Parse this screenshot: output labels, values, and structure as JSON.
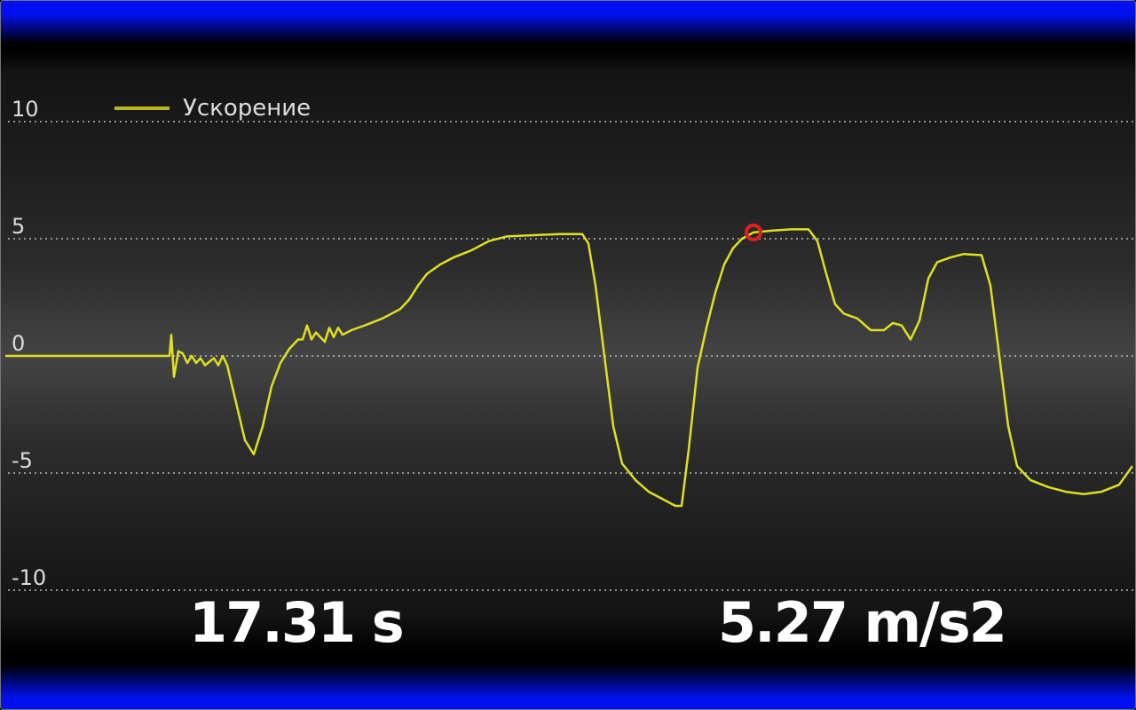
{
  "chart_data": {
    "type": "line",
    "title": "",
    "xlabel": "",
    "ylabel": "",
    "ylim": [
      -10,
      10
    ],
    "yticks": [
      10,
      5,
      0,
      -5,
      -10
    ],
    "grid": "horizontal dotted",
    "legend_position": "top-left",
    "series": [
      {
        "name": "Ускорение",
        "color": "#e0e020",
        "points": [
          [
            0.5,
            0
          ],
          [
            19,
            0
          ],
          [
            19.2,
            0.9
          ],
          [
            19.5,
            -0.9
          ],
          [
            20,
            0.2
          ],
          [
            20.5,
            0.1
          ],
          [
            21,
            -0.3
          ],
          [
            21.5,
            0
          ],
          [
            22,
            -0.3
          ],
          [
            22.5,
            -0.1
          ],
          [
            23,
            -0.4
          ],
          [
            24,
            -0.1
          ],
          [
            24.5,
            -0.4
          ],
          [
            25,
            0
          ],
          [
            25.5,
            -0.4
          ],
          [
            26.5,
            -2
          ],
          [
            27.5,
            -3.6
          ],
          [
            28.5,
            -4.2
          ],
          [
            29.5,
            -3
          ],
          [
            30.5,
            -1.3
          ],
          [
            31.5,
            -0.3
          ],
          [
            32.5,
            0.3
          ],
          [
            33.5,
            0.7
          ],
          [
            34,
            0.7
          ],
          [
            34.5,
            1.3
          ],
          [
            35,
            0.7
          ],
          [
            35.5,
            1.0
          ],
          [
            36.5,
            0.6
          ],
          [
            37,
            1.2
          ],
          [
            37.5,
            0.8
          ],
          [
            38,
            1.2
          ],
          [
            38.5,
            0.9
          ],
          [
            39.5,
            1.1
          ],
          [
            41,
            1.3
          ],
          [
            43,
            1.6
          ],
          [
            45,
            2.0
          ],
          [
            46,
            2.4
          ],
          [
            47,
            3.0
          ],
          [
            48,
            3.5
          ],
          [
            49.5,
            3.9
          ],
          [
            51,
            4.2
          ],
          [
            53,
            4.5
          ],
          [
            55,
            4.9
          ],
          [
            57,
            5.1
          ],
          [
            60,
            5.15
          ],
          [
            63,
            5.2
          ],
          [
            65.5,
            5.2
          ],
          [
            66.2,
            4.8
          ],
          [
            67,
            3
          ],
          [
            68,
            0
          ],
          [
            69,
            -3
          ],
          [
            70,
            -4.6
          ],
          [
            71.5,
            -5.3
          ],
          [
            73,
            -5.8
          ],
          [
            74.5,
            -6.1
          ],
          [
            76,
            -6.4
          ],
          [
            76.7,
            -6.4
          ],
          [
            77.5,
            -4
          ],
          [
            78.5,
            -0.5
          ],
          [
            79.5,
            1.2
          ],
          [
            80.5,
            2.7
          ],
          [
            81.5,
            3.9
          ],
          [
            82.5,
            4.6
          ],
          [
            83.5,
            5.0
          ],
          [
            84.8,
            5.27
          ],
          [
            87,
            5.35
          ],
          [
            89,
            5.4
          ],
          [
            91,
            5.4
          ],
          [
            92,
            4.9
          ],
          [
            93,
            3.5
          ],
          [
            94,
            2.2
          ],
          [
            95,
            1.8
          ],
          [
            96.5,
            1.6
          ],
          [
            98,
            1.1
          ],
          [
            99.5,
            1.1
          ],
          [
            100.5,
            1.4
          ],
          [
            101.5,
            1.3
          ],
          [
            102.5,
            0.7
          ],
          [
            103.5,
            1.5
          ],
          [
            104.5,
            3.3
          ],
          [
            105.5,
            4.0
          ],
          [
            107,
            4.2
          ],
          [
            108.5,
            4.35
          ],
          [
            110.5,
            4.3
          ],
          [
            111.5,
            3
          ],
          [
            112.5,
            0
          ],
          [
            113.5,
            -3
          ],
          [
            114.5,
            -4.7
          ],
          [
            116,
            -5.3
          ],
          [
            118,
            -5.6
          ],
          [
            120,
            -5.8
          ],
          [
            122,
            -5.9
          ],
          [
            124,
            -5.8
          ],
          [
            126,
            -5.5
          ],
          [
            127.5,
            -4.7
          ]
        ]
      }
    ],
    "marker": {
      "x": 84.8,
      "y": 5.27,
      "color": "#e02020"
    }
  },
  "readout": {
    "time": "17.31 s",
    "value": "5.27 m/s2"
  },
  "colors": {
    "bars": "#0010f0",
    "line": "#e0e020",
    "marker": "#e02020"
  }
}
